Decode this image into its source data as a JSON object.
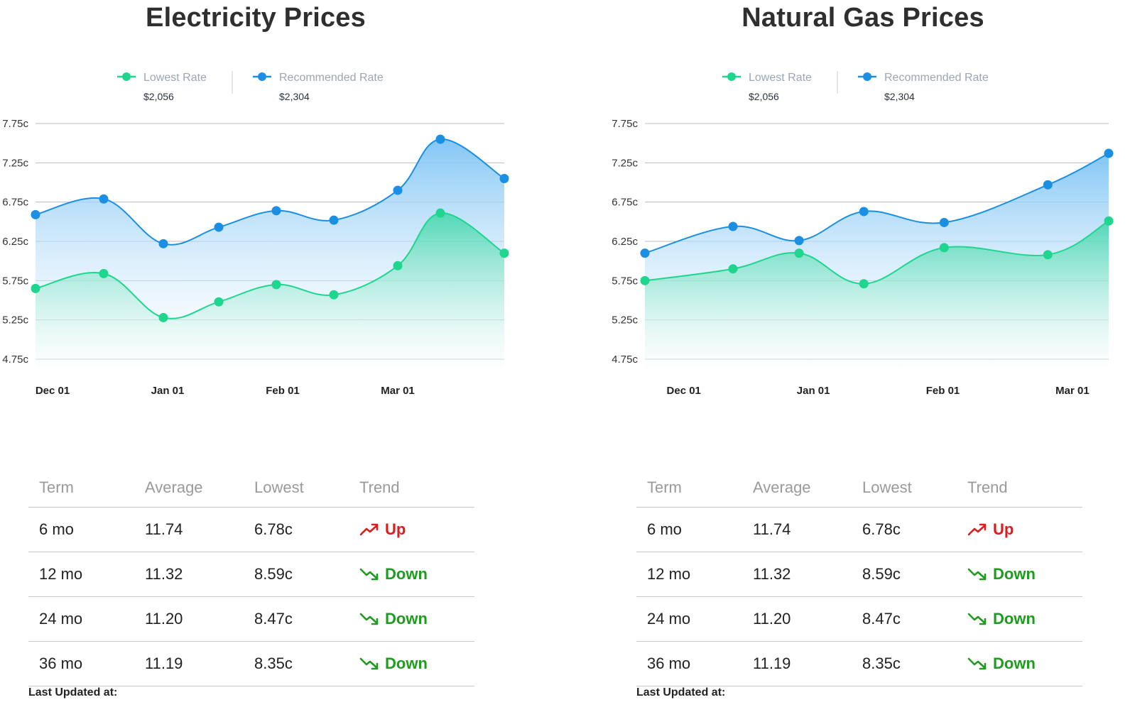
{
  "palette": {
    "lowest_color": "#1fd68e",
    "recommended_color": "#1a8fe3",
    "grid_color": "#b9bcc4",
    "up_color": "#e01b1b",
    "down_color": "#1f9b1f"
  },
  "chart_data": [
    {
      "type": "area",
      "title": "Electricity Prices",
      "legend": [
        {
          "name": "Lowest Rate",
          "value": "$2,056",
          "color": "#1fd68e"
        },
        {
          "name": "Recommended Rate",
          "value": "$2,304",
          "color": "#1a8fe3"
        }
      ],
      "legend_placement": "top-center",
      "grid": true,
      "y_ticks": [
        "4.75c",
        "5.25c",
        "5.75c",
        "6.25c",
        "6.75c",
        "7.25c",
        "7.75c"
      ],
      "ylim": [
        4.75,
        7.75
      ],
      "x_ticks": [
        "Dec 01",
        "Jan 01",
        "Feb 01",
        "Mar 01"
      ],
      "x_tick_positions": [
        0.4,
        3.1,
        5.8,
        8.5
      ],
      "xlim": [
        0,
        11
      ],
      "series": [
        {
          "name": "Recommended Rate",
          "x": [
            0,
            1.6,
            3.0,
            4.3,
            5.65,
            7.0,
            8.5,
            9.5,
            11.0
          ],
          "values": [
            6.59,
            6.79,
            6.22,
            6.43,
            6.64,
            6.52,
            6.9,
            7.55,
            7.05
          ]
        },
        {
          "name": "Lowest Rate",
          "x": [
            0,
            1.6,
            3.0,
            4.3,
            5.65,
            7.0,
            8.5,
            9.5,
            11.0
          ],
          "values": [
            5.65,
            5.84,
            5.28,
            5.48,
            5.7,
            5.57,
            5.94,
            6.61,
            6.1
          ]
        }
      ]
    },
    {
      "type": "area",
      "title": "Natural Gas Prices",
      "legend": [
        {
          "name": "Lowest Rate",
          "value": "$2,056",
          "color": "#1fd68e"
        },
        {
          "name": "Recommended Rate",
          "value": "$2,304",
          "color": "#1a8fe3"
        }
      ],
      "legend_placement": "top-center",
      "grid": true,
      "y_ticks": [
        "4.75c",
        "5.25c",
        "5.75c",
        "6.25c",
        "6.75c",
        "7.25c",
        "7.75c"
      ],
      "ylim": [
        4.75,
        7.75
      ],
      "x_ticks": [
        "Dec 01",
        "Jan 01",
        "Feb 01",
        "Mar 01"
      ],
      "x_tick_positions": [
        0.3,
        1.3,
        2.3,
        3.3
      ],
      "xlim": [
        0,
        3.58
      ],
      "series": [
        {
          "name": "Recommended Rate",
          "x": [
            0,
            0.68,
            1.19,
            1.69,
            2.31,
            3.11,
            3.58
          ],
          "values": [
            6.1,
            6.44,
            6.26,
            6.63,
            6.49,
            6.97,
            7.37
          ]
        },
        {
          "name": "Lowest Rate",
          "x": [
            0,
            0.68,
            1.19,
            1.69,
            2.31,
            3.11,
            3.58
          ],
          "values": [
            5.75,
            5.9,
            6.1,
            5.71,
            6.17,
            6.08,
            6.51
          ]
        }
      ]
    }
  ],
  "tables": [
    {
      "headers": [
        "Term",
        "Average",
        "Lowest",
        "Trend"
      ],
      "rows": [
        {
          "term": "6 mo",
          "average": "11.74",
          "lowest": "6.78c",
          "trend": "Up",
          "direction": "up",
          "icon": "trend-up-icon"
        },
        {
          "term": "12 mo",
          "average": "11.32",
          "lowest": "8.59c",
          "trend": "Down",
          "direction": "down",
          "icon": "trend-down-icon"
        },
        {
          "term": "24 mo",
          "average": "11.20",
          "lowest": "8.47c",
          "trend": "Down",
          "direction": "down",
          "icon": "trend-down-icon"
        },
        {
          "term": "36 mo",
          "average": "11.19",
          "lowest": "8.35c",
          "trend": "Down",
          "direction": "down",
          "icon": "trend-down-icon"
        }
      ],
      "updated_label": "Last Updated at:"
    },
    {
      "headers": [
        "Term",
        "Average",
        "Lowest",
        "Trend"
      ],
      "rows": [
        {
          "term": "6 mo",
          "average": "11.74",
          "lowest": "6.78c",
          "trend": "Up",
          "direction": "up",
          "icon": "trend-up-icon"
        },
        {
          "term": "12 mo",
          "average": "11.32",
          "lowest": "8.59c",
          "trend": "Down",
          "direction": "down",
          "icon": "trend-down-icon"
        },
        {
          "term": "24 mo",
          "average": "11.20",
          "lowest": "8.47c",
          "trend": "Down",
          "direction": "down",
          "icon": "trend-down-icon"
        },
        {
          "term": "36 mo",
          "average": "11.19",
          "lowest": "8.35c",
          "trend": "Down",
          "direction": "down",
          "icon": "trend-down-icon"
        }
      ],
      "updated_label": "Last Updated at:"
    }
  ]
}
